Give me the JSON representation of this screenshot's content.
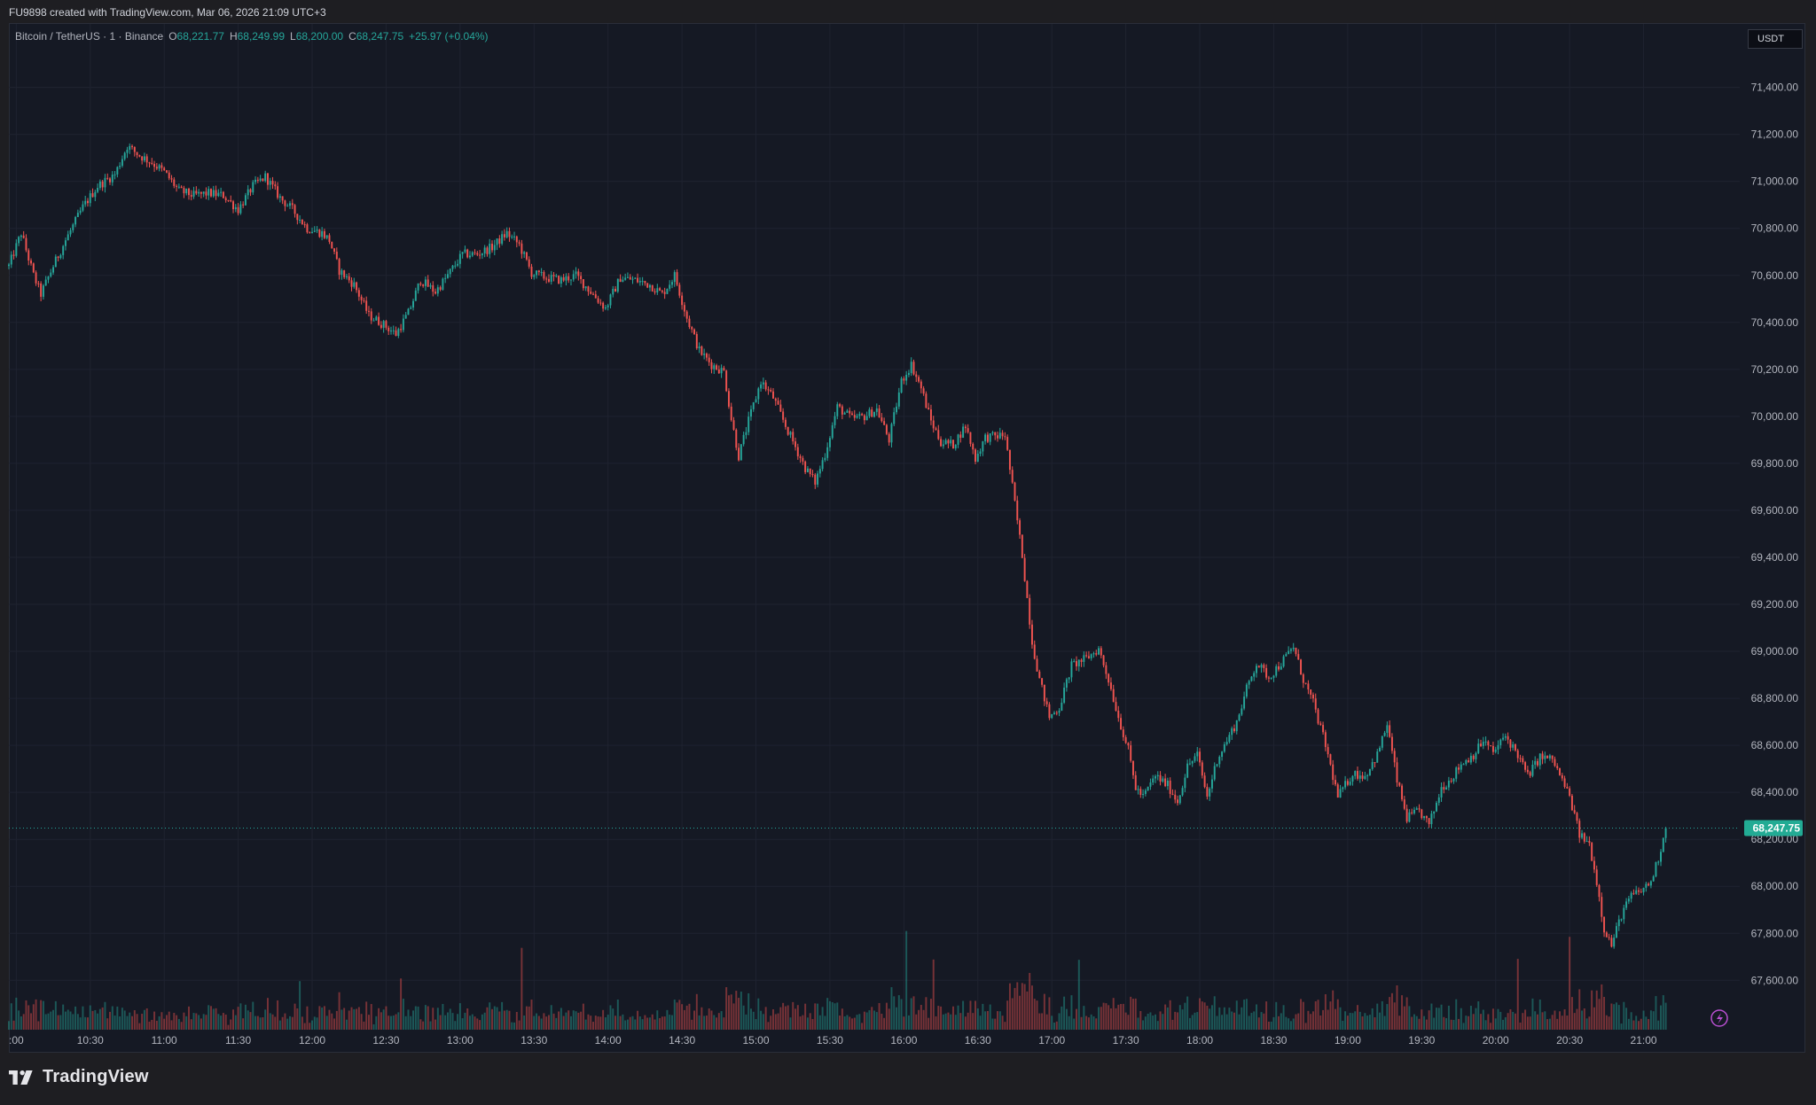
{
  "header": {
    "credit": "FU9898 created with TradingView.com, Mar 06, 2026 21:09 UTC+3"
  },
  "legend": {
    "symbol": "Bitcoin / TetherUS · 1 · Binance",
    "o_label": "O",
    "o_value": "68,221.77",
    "h_label": "H",
    "h_value": "68,249.99",
    "l_label": "L",
    "l_value": "68,200.00",
    "c_label": "C",
    "c_value": "68,247.75",
    "change": "+25.97 (+0.04%)"
  },
  "currency": "USDT",
  "brand": {
    "name": "TradingView"
  },
  "colors": {
    "up": "#26a69a",
    "down": "#ef5350",
    "background": "#151924",
    "grid": "#1f2330",
    "price_label_bg": "#22ab94"
  },
  "chart_data": {
    "type": "candlestick",
    "instrument": "Bitcoin / TetherUS",
    "interval": "1",
    "exchange": "Binance",
    "y_tick_labels": [
      "71,400.00",
      "71,200.00",
      "71,000.00",
      "70,800.00",
      "70,600.00",
      "70,400.00",
      "70,200.00",
      "70,000.00",
      "69,800.00",
      "69,600.00",
      "69,400.00",
      "69,200.00",
      "69,000.00",
      "68,800.00",
      "68,600.00",
      "68,400.00",
      "68,200.00",
      "68,000.00",
      "67,800.00",
      "67,600.00"
    ],
    "y_ticks": [
      71400,
      71200,
      71000,
      70800,
      70600,
      70400,
      70200,
      70000,
      69800,
      69600,
      69400,
      69200,
      69000,
      68800,
      68600,
      68400,
      68200,
      68000,
      67800,
      67600
    ],
    "ylim": [
      67390,
      71670
    ],
    "x_tick_labels": [
      ":00",
      "10:30",
      "11:00",
      "11:30",
      "12:00",
      "12:30",
      "13:00",
      "13:30",
      "14:00",
      "14:30",
      "15:00",
      "15:30",
      "16:00",
      "16:30",
      "17:00",
      "17:30",
      "18:00",
      "18:30",
      "19:00",
      "19:30",
      "20:00",
      "20:30",
      "21:00"
    ],
    "x_ticks_min": [
      600,
      630,
      660,
      690,
      720,
      750,
      780,
      810,
      840,
      870,
      900,
      930,
      960,
      990,
      1020,
      1050,
      1080,
      1110,
      1140,
      1170,
      1200,
      1230,
      1260
    ],
    "xlim_min": [
      597,
      1299
    ],
    "last_time_min": 1269,
    "last_price": 68247.75,
    "last_price_label": "68,247.75",
    "price_path": [
      {
        "t": 597,
        "p": 70640
      },
      {
        "t": 602,
        "p": 70780
      },
      {
        "t": 607,
        "p": 70600
      },
      {
        "t": 610,
        "p": 70520
      },
      {
        "t": 615,
        "p": 70640
      },
      {
        "t": 620,
        "p": 70750
      },
      {
        "t": 627,
        "p": 70890
      },
      {
        "t": 633,
        "p": 70980
      },
      {
        "t": 640,
        "p": 71030
      },
      {
        "t": 645,
        "p": 71150
      },
      {
        "t": 650,
        "p": 71110
      },
      {
        "t": 655,
        "p": 71080
      },
      {
        "t": 660,
        "p": 71040
      },
      {
        "t": 666,
        "p": 70960
      },
      {
        "t": 672,
        "p": 70940
      },
      {
        "t": 678,
        "p": 70950
      },
      {
        "t": 684,
        "p": 70940
      },
      {
        "t": 690,
        "p": 70880
      },
      {
        "t": 696,
        "p": 70980
      },
      {
        "t": 701,
        "p": 71020
      },
      {
        "t": 707,
        "p": 70930
      },
      {
        "t": 712,
        "p": 70880
      },
      {
        "t": 718,
        "p": 70800
      },
      {
        "t": 724,
        "p": 70780
      },
      {
        "t": 727,
        "p": 70750
      },
      {
        "t": 731,
        "p": 70620
      },
      {
        "t": 737,
        "p": 70560
      },
      {
        "t": 743,
        "p": 70430
      },
      {
        "t": 749,
        "p": 70390
      },
      {
        "t": 754,
        "p": 70350
      },
      {
        "t": 759,
        "p": 70440
      },
      {
        "t": 764,
        "p": 70580
      },
      {
        "t": 770,
        "p": 70530
      },
      {
        "t": 775,
        "p": 70600
      },
      {
        "t": 781,
        "p": 70690
      },
      {
        "t": 787,
        "p": 70690
      },
      {
        "t": 793,
        "p": 70720
      },
      {
        "t": 799,
        "p": 70780
      },
      {
        "t": 804,
        "p": 70730
      },
      {
        "t": 809,
        "p": 70610
      },
      {
        "t": 815,
        "p": 70590
      },
      {
        "t": 821,
        "p": 70580
      },
      {
        "t": 827,
        "p": 70600
      },
      {
        "t": 833,
        "p": 70530
      },
      {
        "t": 839,
        "p": 70460
      },
      {
        "t": 845,
        "p": 70590
      },
      {
        "t": 851,
        "p": 70580
      },
      {
        "t": 857,
        "p": 70560
      },
      {
        "t": 862,
        "p": 70520
      },
      {
        "t": 867,
        "p": 70600
      },
      {
        "t": 872,
        "p": 70420
      },
      {
        "t": 877,
        "p": 70280
      },
      {
        "t": 882,
        "p": 70220
      },
      {
        "t": 887,
        "p": 70190
      },
      {
        "t": 890,
        "p": 69990
      },
      {
        "t": 893,
        "p": 69830
      },
      {
        "t": 897,
        "p": 69980
      },
      {
        "t": 902,
        "p": 70150
      },
      {
        "t": 907,
        "p": 70080
      },
      {
        "t": 912,
        "p": 69960
      },
      {
        "t": 916,
        "p": 69870
      },
      {
        "t": 920,
        "p": 69780
      },
      {
        "t": 924,
        "p": 69720
      },
      {
        "t": 928,
        "p": 69840
      },
      {
        "t": 933,
        "p": 70040
      },
      {
        "t": 939,
        "p": 69990
      },
      {
        "t": 944,
        "p": 70000
      },
      {
        "t": 949,
        "p": 70030
      },
      {
        "t": 954,
        "p": 69900
      },
      {
        "t": 959,
        "p": 70150
      },
      {
        "t": 963,
        "p": 70220
      },
      {
        "t": 967,
        "p": 70120
      },
      {
        "t": 971,
        "p": 69980
      },
      {
        "t": 975,
        "p": 69890
      },
      {
        "t": 980,
        "p": 69880
      },
      {
        "t": 985,
        "p": 69960
      },
      {
        "t": 989,
        "p": 69820
      },
      {
        "t": 993,
        "p": 69910
      },
      {
        "t": 1001,
        "p": 69920
      },
      {
        "t": 1008,
        "p": 69410
      },
      {
        "t": 1012,
        "p": 69040
      },
      {
        "t": 1015,
        "p": 68880
      },
      {
        "t": 1019,
        "p": 68720
      },
      {
        "t": 1023,
        "p": 68760
      },
      {
        "t": 1028,
        "p": 68940
      },
      {
        "t": 1034,
        "p": 68970
      },
      {
        "t": 1039,
        "p": 69010
      },
      {
        "t": 1043,
        "p": 68880
      },
      {
        "t": 1047,
        "p": 68720
      },
      {
        "t": 1051,
        "p": 68580
      },
      {
        "t": 1054,
        "p": 68420
      },
      {
        "t": 1057,
        "p": 68380
      },
      {
        "t": 1062,
        "p": 68470
      },
      {
        "t": 1067,
        "p": 68430
      },
      {
        "t": 1071,
        "p": 68360
      },
      {
        "t": 1075,
        "p": 68510
      },
      {
        "t": 1079,
        "p": 68560
      },
      {
        "t": 1083,
        "p": 68380
      },
      {
        "t": 1087,
        "p": 68540
      },
      {
        "t": 1091,
        "p": 68620
      },
      {
        "t": 1095,
        "p": 68700
      },
      {
        "t": 1099,
        "p": 68840
      },
      {
        "t": 1103,
        "p": 68950
      },
      {
        "t": 1108,
        "p": 68890
      },
      {
        "t": 1113,
        "p": 68950
      },
      {
        "t": 1118,
        "p": 69020
      },
      {
        "t": 1122,
        "p": 68880
      },
      {
        "t": 1126,
        "p": 68780
      },
      {
        "t": 1131,
        "p": 68600
      },
      {
        "t": 1136,
        "p": 68380
      },
      {
        "t": 1142,
        "p": 68480
      },
      {
        "t": 1147,
        "p": 68470
      },
      {
        "t": 1152,
        "p": 68560
      },
      {
        "t": 1156,
        "p": 68690
      },
      {
        "t": 1160,
        "p": 68450
      },
      {
        "t": 1164,
        "p": 68290
      },
      {
        "t": 1169,
        "p": 68320
      },
      {
        "t": 1173,
        "p": 68260
      },
      {
        "t": 1178,
        "p": 68420
      },
      {
        "t": 1182,
        "p": 68460
      },
      {
        "t": 1186,
        "p": 68520
      },
      {
        "t": 1191,
        "p": 68560
      },
      {
        "t": 1195,
        "p": 68620
      },
      {
        "t": 1199,
        "p": 68570
      },
      {
        "t": 1204,
        "p": 68640
      },
      {
        "t": 1209,
        "p": 68560
      },
      {
        "t": 1213,
        "p": 68470
      },
      {
        "t": 1218,
        "p": 68550
      },
      {
        "t": 1223,
        "p": 68540
      },
      {
        "t": 1227,
        "p": 68450
      },
      {
        "t": 1230,
        "p": 68380
      },
      {
        "t": 1234,
        "p": 68220
      },
      {
        "t": 1238,
        "p": 68180
      },
      {
        "t": 1241,
        "p": 68020
      },
      {
        "t": 1244,
        "p": 67820
      },
      {
        "t": 1247,
        "p": 67750
      },
      {
        "t": 1251,
        "p": 67880
      },
      {
        "t": 1255,
        "p": 67960
      },
      {
        "t": 1259,
        "p": 67980
      },
      {
        "t": 1263,
        "p": 68020
      },
      {
        "t": 1266,
        "p": 68120
      },
      {
        "t": 1269,
        "p": 68247.75
      }
    ],
    "volume_bars": "thin histogram along the bottom; colored up/down per candle"
  }
}
